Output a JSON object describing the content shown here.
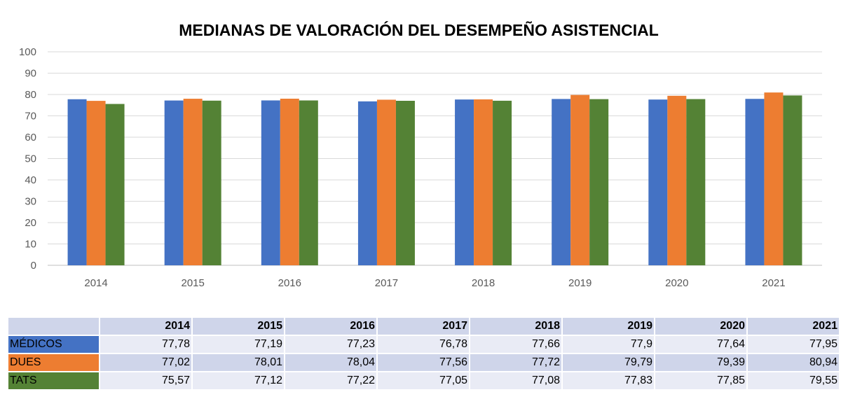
{
  "chart_data": {
    "type": "bar",
    "title": "MEDIANAS DE VALORACIÓN DEL DESEMPEÑO ASISTENCIAL",
    "categories": [
      "2014",
      "2015",
      "2016",
      "2017",
      "2018",
      "2019",
      "2020",
      "2021"
    ],
    "series": [
      {
        "name": "MÉDICOS",
        "color": "#4472c4",
        "values": [
          77.78,
          77.19,
          77.23,
          76.78,
          77.66,
          77.9,
          77.64,
          77.95
        ],
        "labels": [
          "77,78",
          "77,19",
          "77,23",
          "76,78",
          "77,66",
          "77,9",
          "77,64",
          "77,95"
        ]
      },
      {
        "name": "DUES",
        "color": "#ed7d31",
        "values": [
          77.02,
          78.01,
          78.04,
          77.56,
          77.72,
          79.79,
          79.39,
          80.94
        ],
        "labels": [
          "77,02",
          "78,01",
          "78,04",
          "77,56",
          "77,72",
          "79,79",
          "79,39",
          "80,94"
        ]
      },
      {
        "name": "TATS",
        "color": "#548235",
        "values": [
          75.57,
          77.12,
          77.22,
          77.05,
          77.08,
          77.83,
          77.85,
          79.55
        ],
        "labels": [
          "75,57",
          "77,12",
          "77,22",
          "77,05",
          "77,08",
          "77,83",
          "77,85",
          "79,55"
        ]
      }
    ],
    "yticks": [
      "0",
      "10",
      "20",
      "30",
      "40",
      "50",
      "60",
      "70",
      "80",
      "90",
      "100"
    ],
    "ylim": [
      0,
      100
    ],
    "grid": true,
    "legend": "data table below chart"
  }
}
